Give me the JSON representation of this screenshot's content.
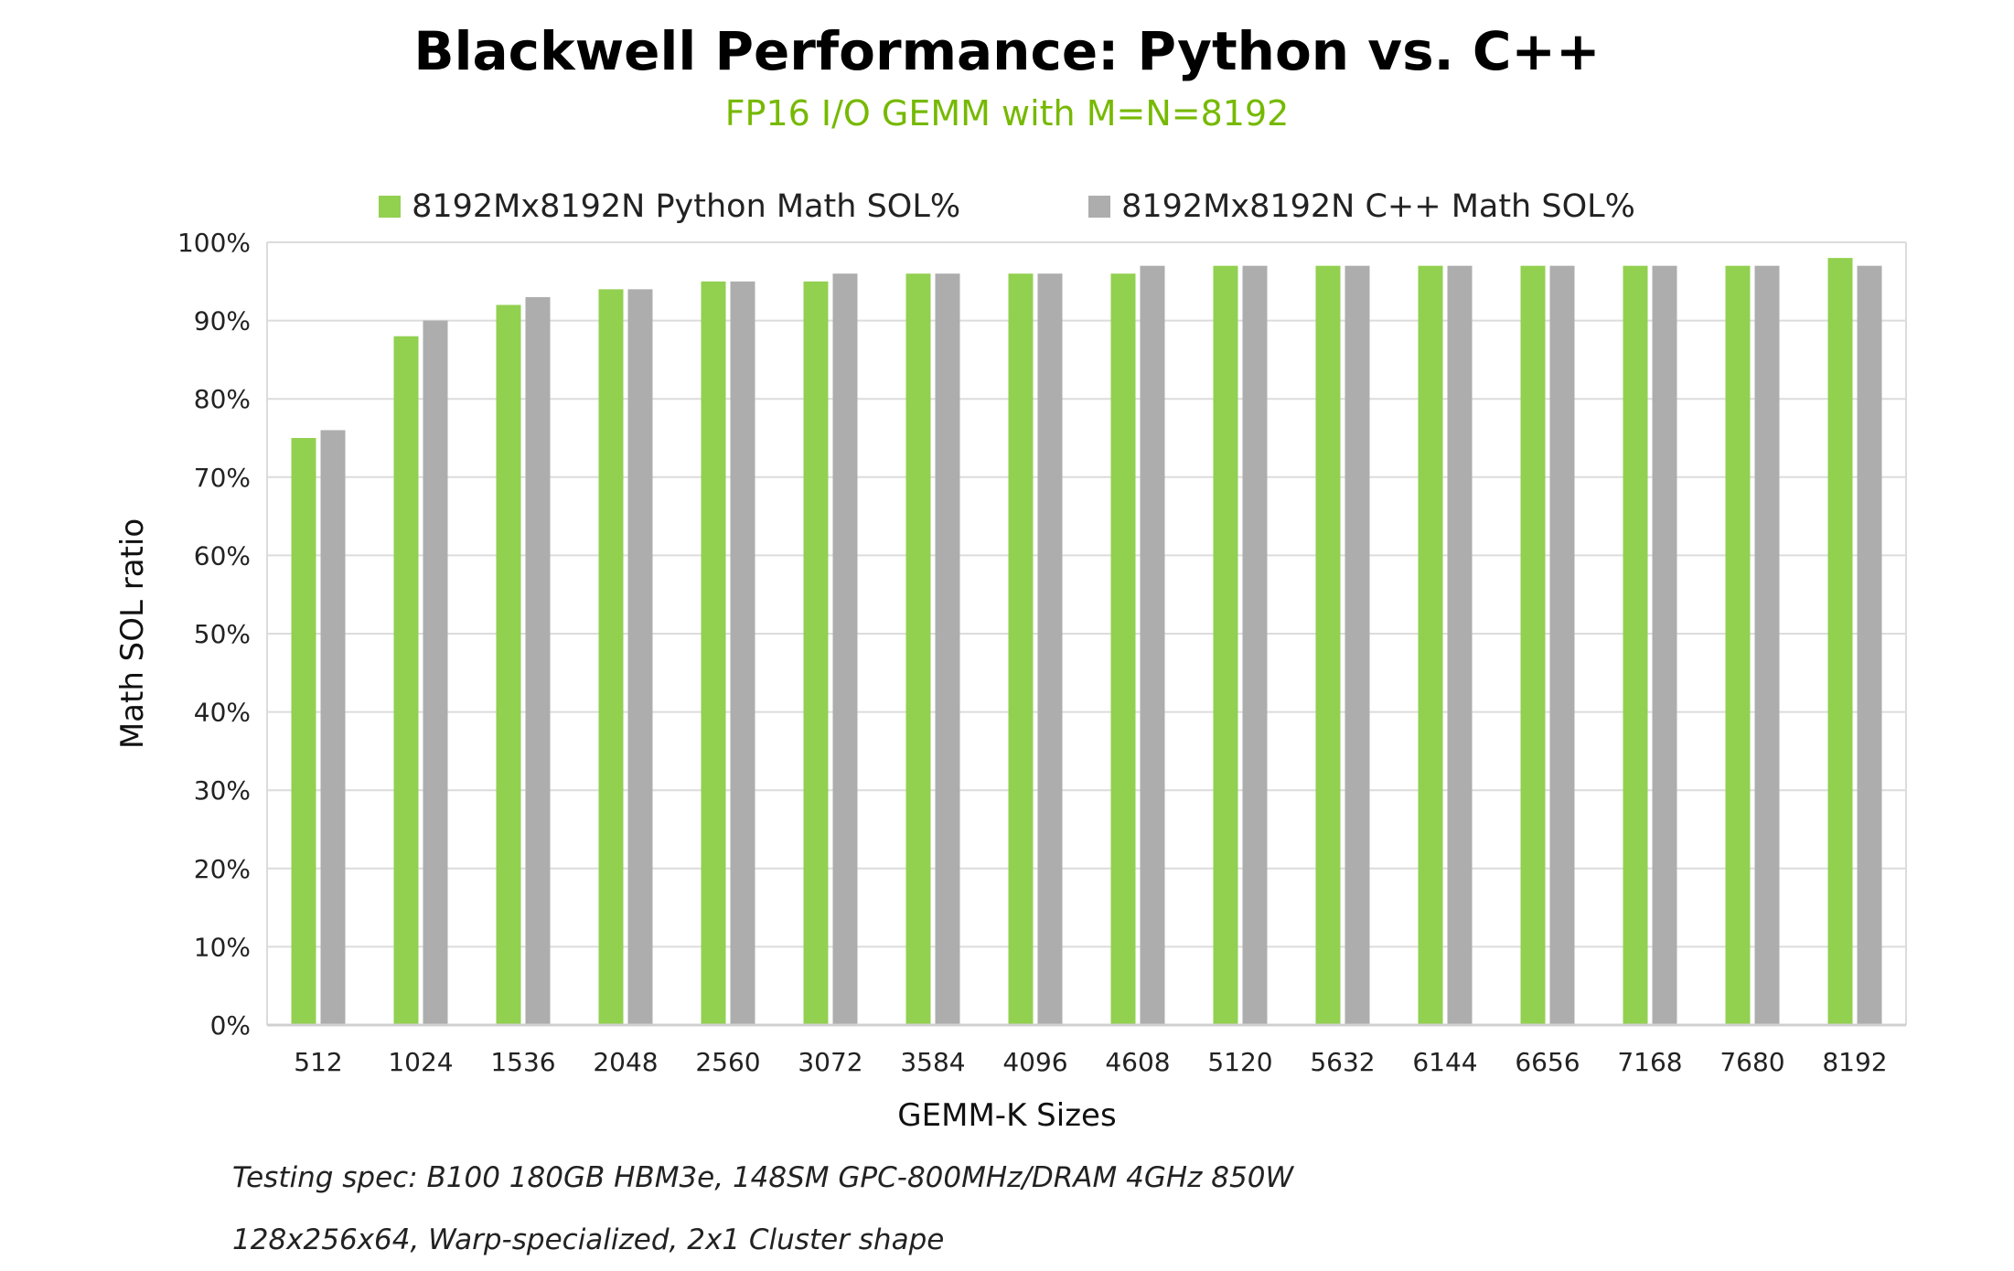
{
  "chart_data": {
    "type": "bar",
    "title": "Blackwell Performance: Python vs. C++",
    "subtitle": "FP16 I/O GEMM with M=N=8192",
    "xlabel": "GEMM-K Sizes",
    "ylabel": "Math SOL ratio",
    "categories": [
      "512",
      "1024",
      "1536",
      "2048",
      "2560",
      "3072",
      "3584",
      "4096",
      "4608",
      "5120",
      "5632",
      "6144",
      "6656",
      "7168",
      "7680",
      "8192"
    ],
    "series": [
      {
        "name": "8192Mx8192N Python Math SOL%",
        "color": "#92d050",
        "values": [
          75,
          88,
          92,
          94,
          95,
          95,
          96,
          96,
          96,
          97,
          97,
          97,
          97,
          97,
          97,
          98
        ]
      },
      {
        "name": "8192Mx8192N C++ Math SOL%",
        "color": "#adadad",
        "values": [
          76,
          90,
          93,
          94,
          95,
          96,
          96,
          96,
          97,
          97,
          97,
          97,
          97,
          97,
          97,
          97
        ]
      }
    ],
    "ylim": [
      0,
      100
    ],
    "yticks": [
      0,
      10,
      20,
      30,
      40,
      50,
      60,
      70,
      80,
      90,
      100
    ],
    "ytick_format": "%",
    "grid": true,
    "legend_position": "top",
    "subtitle_color": "#76b900"
  },
  "notes": [
    "Testing spec: B100 180GB HBM3e, 148SM GPC-800MHz/DRAM 4GHz 850W",
    "128x256x64, Warp-specialized, 2x1 Cluster shape"
  ]
}
